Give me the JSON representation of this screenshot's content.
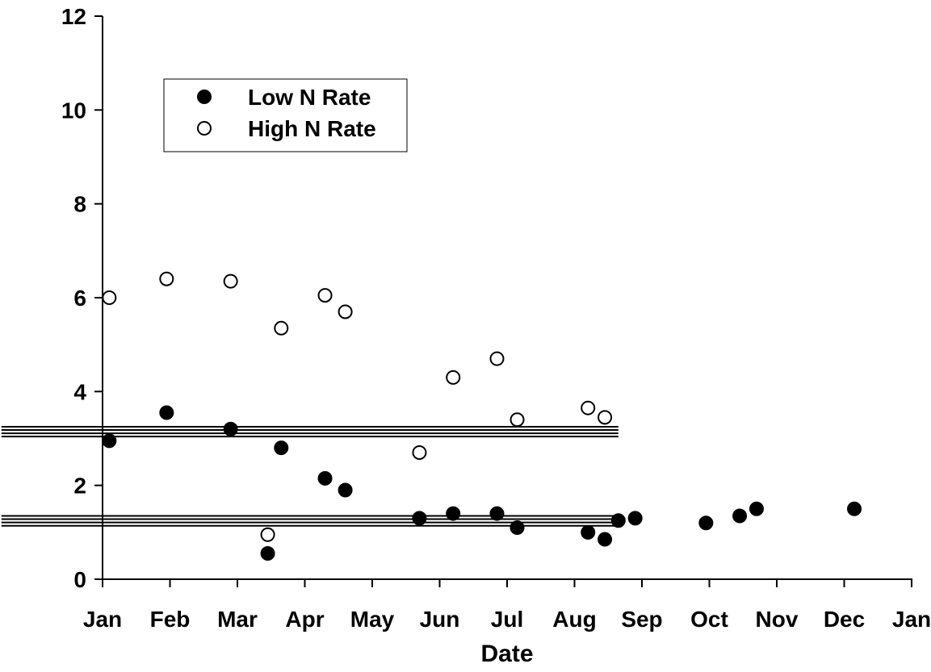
{
  "chart_data": {
    "type": "scatter",
    "xlabel": "Date",
    "ylabel": "",
    "x_tick_labels": [
      "Jan",
      "Feb",
      "Mar",
      "Apr",
      "May",
      "Jun",
      "Jul",
      "Aug",
      "Sep",
      "Oct",
      "Nov",
      "Dec",
      "Jan"
    ],
    "x_unit": "month index (0 = Jan 1)",
    "xlim": [
      0,
      12
    ],
    "ylim": [
      0,
      12
    ],
    "y_ticks": [
      0,
      2,
      4,
      6,
      8,
      10,
      12
    ],
    "grid": false,
    "legend": {
      "placement": "top-left"
    },
    "series": [
      {
        "name": "Low N Rate",
        "marker": "filled-circle",
        "color": "#000000",
        "x": [
          0.1,
          0.95,
          1.9,
          2.65,
          3.3,
          3.6,
          4.7,
          5.2,
          5.85,
          6.15,
          7.2,
          7.45,
          7.65,
          7.9,
          8.95,
          9.45,
          9.7,
          11.15
        ],
        "y": [
          2.95,
          3.55,
          3.2,
          2.8,
          2.15,
          1.9,
          1.3,
          1.4,
          1.4,
          1.1,
          1.0,
          0.85,
          1.25,
          1.3,
          1.2,
          1.35,
          1.5,
          1.5
        ]
      },
      {
        "name": "High N Rate",
        "marker": "open-circle",
        "color": "#000000",
        "x": [
          0.1,
          0.95,
          1.9,
          2.65,
          3.3,
          3.6,
          4.7,
          5.2,
          5.85,
          6.15,
          7.2,
          7.45
        ],
        "y": [
          6.0,
          6.4,
          6.35,
          5.35,
          6.05,
          5.7,
          2.7,
          4.3,
          4.7,
          3.4,
          3.65,
          3.45
        ]
      },
      {
        "name": "",
        "marker": "filled-circle",
        "color": "#000000",
        "x": [
          2.45
        ],
        "y": [
          0.55
        ]
      },
      {
        "name": "",
        "marker": "open-circle",
        "color": "#000000",
        "x": [
          2.45
        ],
        "y": [
          0.95
        ]
      }
    ],
    "reference_line_groups": [
      {
        "y": [
          3.25,
          3.18,
          3.11,
          3.04
        ],
        "x_range": [
          -1.5,
          7.65
        ]
      },
      {
        "y": [
          1.35,
          1.28,
          1.21,
          1.14
        ],
        "x_range": [
          -1.5,
          7.65
        ]
      }
    ]
  }
}
